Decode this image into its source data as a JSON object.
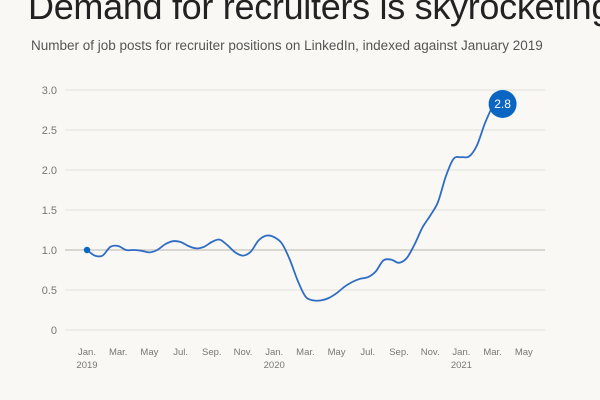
{
  "header": {
    "title": "Demand for recruiters is skyrocketing",
    "subtitle": "Number of job posts for recruiter positions on LinkedIn, indexed against January 2019"
  },
  "colors": {
    "line": "#2f6dc4",
    "grid": "#e3e0da",
    "baseline": "#cfcbc4",
    "badge": "#0a66c2"
  },
  "chart_data": {
    "type": "line",
    "title": "Demand for recruiters is skyrocketing",
    "subtitle": "Number of job posts for recruiter positions on LinkedIn, indexed against January 2019",
    "xlabel": "",
    "ylabel": "",
    "ylim": [
      0,
      3.0
    ],
    "yticks": [
      {
        "value": 0,
        "label": "0"
      },
      {
        "value": 0.5,
        "label": "0.5"
      },
      {
        "value": 1.0,
        "label": "1.0"
      },
      {
        "value": 1.5,
        "label": "1.5"
      },
      {
        "value": 2.0,
        "label": "2.0"
      },
      {
        "value": 2.5,
        "label": "2.5"
      },
      {
        "value": 3.0,
        "label": "3.0"
      }
    ],
    "xticks": [
      {
        "index": 0,
        "label": "Jan.",
        "year": "2019"
      },
      {
        "index": 2,
        "label": "Mar.",
        "year": ""
      },
      {
        "index": 4,
        "label": "May",
        "year": ""
      },
      {
        "index": 6,
        "label": "Jul.",
        "year": ""
      },
      {
        "index": 8,
        "label": "Sep.",
        "year": ""
      },
      {
        "index": 10,
        "label": "Nov.",
        "year": ""
      },
      {
        "index": 12,
        "label": "Jan.",
        "year": "2020"
      },
      {
        "index": 14,
        "label": "Mar.",
        "year": ""
      },
      {
        "index": 16,
        "label": "May",
        "year": ""
      },
      {
        "index": 18,
        "label": "Jul.",
        "year": ""
      },
      {
        "index": 20,
        "label": "Sep.",
        "year": ""
      },
      {
        "index": 22,
        "label": "Nov.",
        "year": ""
      },
      {
        "index": 24,
        "label": "Jan.",
        "year": "2021"
      },
      {
        "index": 26,
        "label": "Mar.",
        "year": ""
      },
      {
        "index": 28,
        "label": "May",
        "year": ""
      }
    ],
    "series": [
      {
        "values": [
          {
            "x": 0.0,
            "y": 1.0
          },
          {
            "x": 0.5,
            "y": 0.93
          },
          {
            "x": 1.0,
            "y": 0.93
          },
          {
            "x": 1.5,
            "y": 1.04
          },
          {
            "x": 2.0,
            "y": 1.05
          },
          {
            "x": 2.5,
            "y": 1.0
          },
          {
            "x": 3.0,
            "y": 1.0
          },
          {
            "x": 3.5,
            "y": 0.99
          },
          {
            "x": 4.0,
            "y": 0.97
          },
          {
            "x": 4.5,
            "y": 1.0
          },
          {
            "x": 5.0,
            "y": 1.07
          },
          {
            "x": 5.5,
            "y": 1.11
          },
          {
            "x": 6.0,
            "y": 1.1
          },
          {
            "x": 6.5,
            "y": 1.05
          },
          {
            "x": 7.0,
            "y": 1.02
          },
          {
            "x": 7.5,
            "y": 1.04
          },
          {
            "x": 8.0,
            "y": 1.1
          },
          {
            "x": 8.5,
            "y": 1.13
          },
          {
            "x": 9.0,
            "y": 1.06
          },
          {
            "x": 9.5,
            "y": 0.97
          },
          {
            "x": 10.0,
            "y": 0.93
          },
          {
            "x": 10.5,
            "y": 0.98
          },
          {
            "x": 11.0,
            "y": 1.12
          },
          {
            "x": 11.5,
            "y": 1.18
          },
          {
            "x": 12.0,
            "y": 1.16
          },
          {
            "x": 12.5,
            "y": 1.08
          },
          {
            "x": 13.0,
            "y": 0.88
          },
          {
            "x": 13.5,
            "y": 0.62
          },
          {
            "x": 14.0,
            "y": 0.42
          },
          {
            "x": 14.5,
            "y": 0.37
          },
          {
            "x": 15.0,
            "y": 0.37
          },
          {
            "x": 15.5,
            "y": 0.4
          },
          {
            "x": 16.0,
            "y": 0.46
          },
          {
            "x": 16.5,
            "y": 0.54
          },
          {
            "x": 17.0,
            "y": 0.6
          },
          {
            "x": 17.5,
            "y": 0.64
          },
          {
            "x": 18.0,
            "y": 0.66
          },
          {
            "x": 18.5,
            "y": 0.73
          },
          {
            "x": 19.0,
            "y": 0.87
          },
          {
            "x": 19.5,
            "y": 0.88
          },
          {
            "x": 20.0,
            "y": 0.84
          },
          {
            "x": 20.5,
            "y": 0.9
          },
          {
            "x": 21.0,
            "y": 1.07
          },
          {
            "x": 21.5,
            "y": 1.28
          },
          {
            "x": 22.0,
            "y": 1.43
          },
          {
            "x": 22.5,
            "y": 1.6
          },
          {
            "x": 23.0,
            "y": 1.92
          },
          {
            "x": 23.5,
            "y": 2.14
          },
          {
            "x": 24.0,
            "y": 2.16
          },
          {
            "x": 24.5,
            "y": 2.17
          },
          {
            "x": 25.0,
            "y": 2.31
          },
          {
            "x": 25.5,
            "y": 2.58
          },
          {
            "x": 26.0,
            "y": 2.8
          }
        ]
      }
    ],
    "annotations": [
      {
        "x": 26.0,
        "y": 2.8,
        "text": "2.8"
      }
    ],
    "start_marker": {
      "x": 0.0,
      "y": 1.0
    },
    "grid": true,
    "legend": "none"
  }
}
